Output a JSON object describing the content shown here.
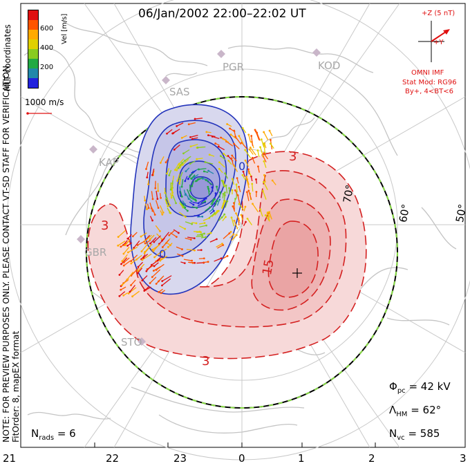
{
  "title": "06/Jan/2002 22:00–22:02 UT",
  "coordinates_label": "MLT coordinates",
  "velocity_legend": {
    "label": "Vel [m/s]",
    "ticks": [
      "600",
      "400",
      "200"
    ],
    "colors": [
      "#e01010",
      "#ff5500",
      "#ffaa00",
      "#e0d000",
      "#88cc22",
      "#22aa44",
      "#2288aa",
      "#2222dd"
    ]
  },
  "scale_vector_label": "1000 m/s",
  "vertical_note": "NOTE: FOR PREVIEW PURPOSES ONLY. PLEASE CONTACT VT-SD STAFF FOR VERIFICATION.",
  "fit_order_note": "FitOrder: 8, mapEX format",
  "imf": {
    "z_label": "+Z (5 nT)",
    "y_label": "+Y",
    "source": "OMNI IMF",
    "stat_mod": "Stat Mod: RG96",
    "bin": "By+, 4<BT<6"
  },
  "stations": [
    "PGR",
    "KOD",
    "SAS",
    "KAP",
    "GBR",
    "STO"
  ],
  "latitude_labels": [
    "70°",
    "60°",
    "50°"
  ],
  "mlt_ticks": [
    "21",
    "22",
    "23",
    "0",
    "1",
    "2",
    "3"
  ],
  "contour_labels": {
    "neg_small": "0",
    "neg_small_2": "0",
    "pos_a": "3",
    "pos_b": "3",
    "pos_c": "3",
    "pos_peak": "15"
  },
  "stats": {
    "phi_pc_sym": "Φ",
    "phi_pc_sub": "pc",
    "phi_pc_value": "= 42 kV",
    "lambda_hm_sym": "Λ",
    "lambda_hm_sub": "HM",
    "lambda_hm_value": "= 62°",
    "n_vc_sym": "N",
    "n_vc_sub": "vc",
    "n_vc_value": "= 585",
    "n_rads_sym": "N",
    "n_rads_sub": "rads",
    "n_rads_value": "= 6"
  }
}
